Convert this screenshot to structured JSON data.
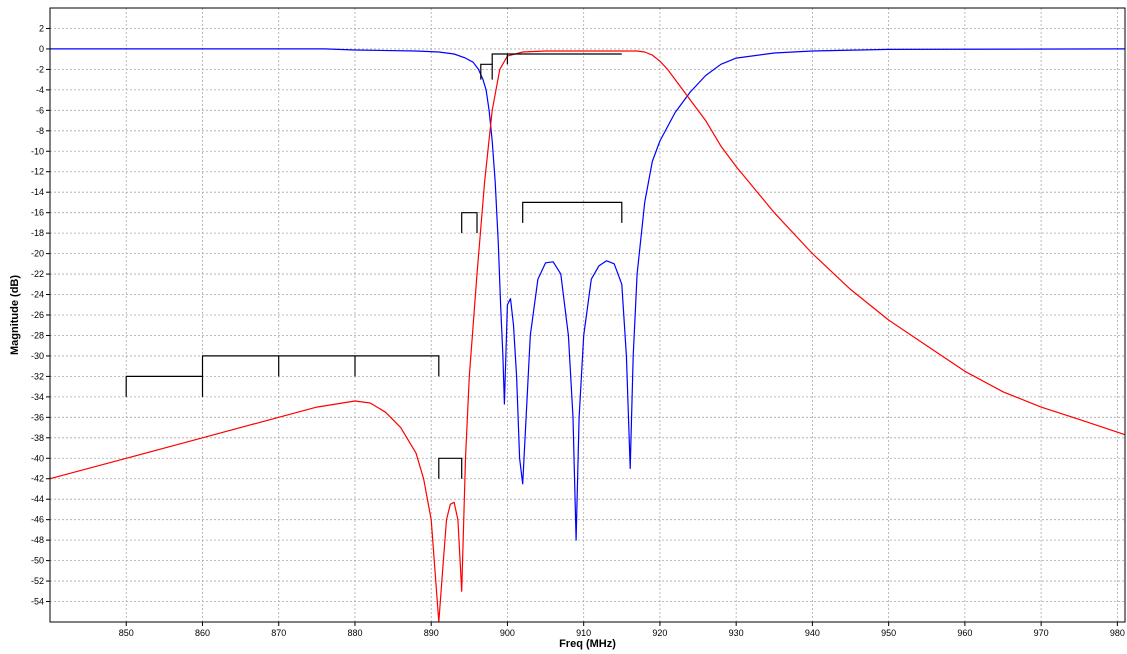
{
  "chart_data": {
    "type": "line",
    "xlabel": "Freq (MHz)",
    "ylabel": "Magnitude (dB)",
    "xlim": [
      840,
      981
    ],
    "ylim": [
      -56,
      4
    ],
    "x_ticks": [
      850,
      860,
      870,
      880,
      890,
      900,
      910,
      920,
      930,
      940,
      950,
      960,
      970,
      980
    ],
    "y_ticks": [
      2,
      0,
      -2,
      -4,
      -6,
      -8,
      -10,
      -12,
      -14,
      -16,
      -18,
      -20,
      -22,
      -24,
      -26,
      -28,
      -30,
      -32,
      -34,
      -36,
      -38,
      -40,
      -42,
      -44,
      -46,
      -48,
      -50,
      -52,
      -54
    ],
    "grid": true,
    "series": [
      {
        "color": "#0000ff",
        "x": [
          840,
          876,
          880,
          888,
          891,
          893,
          894.5,
          895.5,
          896.2,
          896.8,
          897.2,
          897.6,
          898,
          898.4,
          898.8,
          899.1,
          899.4,
          899.6,
          900,
          900.4,
          900.8,
          901.2,
          901.6,
          902,
          903,
          904,
          905,
          906,
          907,
          908,
          908.6,
          909,
          909.4,
          910,
          911,
          912,
          913,
          914,
          915,
          915.6,
          916.1,
          916.5,
          917,
          918,
          919,
          920,
          922,
          924,
          926,
          928,
          930,
          935,
          940,
          950,
          981
        ],
        "y": [
          0,
          0,
          -0.1,
          -0.2,
          -0.3,
          -0.5,
          -0.9,
          -1.3,
          -2,
          -3,
          -4,
          -6,
          -9,
          -13,
          -19,
          -25,
          -30,
          -34.7,
          -25,
          -24.4,
          -27,
          -32,
          -40,
          -42.5,
          -28,
          -22.5,
          -20.9,
          -20.8,
          -22,
          -28,
          -36,
          -48,
          -36,
          -28,
          -22.5,
          -21.2,
          -20.7,
          -21,
          -23,
          -30,
          -41,
          -30,
          -22,
          -15,
          -11,
          -9,
          -6.2,
          -4.2,
          -2.6,
          -1.5,
          -0.9,
          -0.4,
          -0.2,
          -0.05,
          0
        ]
      },
      {
        "color": "#ff0000",
        "x": [
          840,
          850,
          860,
          870,
          875,
          880,
          882,
          884,
          886,
          888,
          889,
          890,
          890.5,
          891,
          891.5,
          892,
          892.5,
          893,
          893.5,
          894,
          894.5,
          895,
          896,
          897,
          898,
          899,
          900,
          902,
          905,
          910,
          915,
          917,
          918,
          919,
          920,
          921,
          922,
          924,
          926,
          928,
          930,
          935,
          940,
          945,
          950,
          955,
          960,
          965,
          970,
          975,
          981
        ],
        "y": [
          -42,
          -40,
          -38,
          -36,
          -35,
          -34.4,
          -34.6,
          -35.5,
          -37,
          -39.5,
          -42,
          -46,
          -51,
          -56,
          -51,
          -46,
          -44.5,
          -44.3,
          -46,
          -53,
          -40,
          -32,
          -22,
          -13,
          -6,
          -2,
          -0.7,
          -0.3,
          -0.2,
          -0.2,
          -0.2,
          -0.2,
          -0.3,
          -0.6,
          -1.2,
          -2,
          -3,
          -5,
          -7,
          -9.5,
          -11.5,
          -16,
          -20,
          -23.5,
          -26.5,
          -29,
          -31.5,
          -33.5,
          -35,
          -36.2,
          -37.7
        ]
      }
    ],
    "mask_lines": [
      {
        "x": [
          850,
          850,
          860,
          860
        ],
        "y": [
          -34,
          -32,
          -32,
          -34
        ]
      },
      {
        "x": [
          860,
          860,
          891,
          891
        ],
        "y": [
          -32,
          -30,
          -30,
          -32
        ]
      },
      {
        "x": [
          870,
          870
        ],
        "y": [
          -30,
          -32
        ]
      },
      {
        "x": [
          880,
          880
        ],
        "y": [
          -30,
          -32
        ]
      },
      {
        "x": [
          891,
          891,
          894,
          894
        ],
        "y": [
          -42,
          -40,
          -40,
          -42
        ]
      },
      {
        "x": [
          894,
          894,
          896,
          896
        ],
        "y": [
          -18,
          -16,
          -16,
          -18
        ]
      },
      {
        "x": [
          902,
          902,
          915,
          915
        ],
        "y": [
          -17,
          -15,
          -15,
          -17
        ]
      },
      {
        "x": [
          896.5,
          896.5,
          898,
          898
        ],
        "y": [
          -3,
          -1.5,
          -1.5,
          -3
        ]
      },
      {
        "x": [
          898,
          898,
          900,
          900
        ],
        "y": [
          -1.5,
          -0.5,
          -0.5,
          -1.5
        ]
      },
      {
        "x": [
          900,
          915
        ],
        "y": [
          -0.5,
          -0.5
        ]
      }
    ]
  }
}
